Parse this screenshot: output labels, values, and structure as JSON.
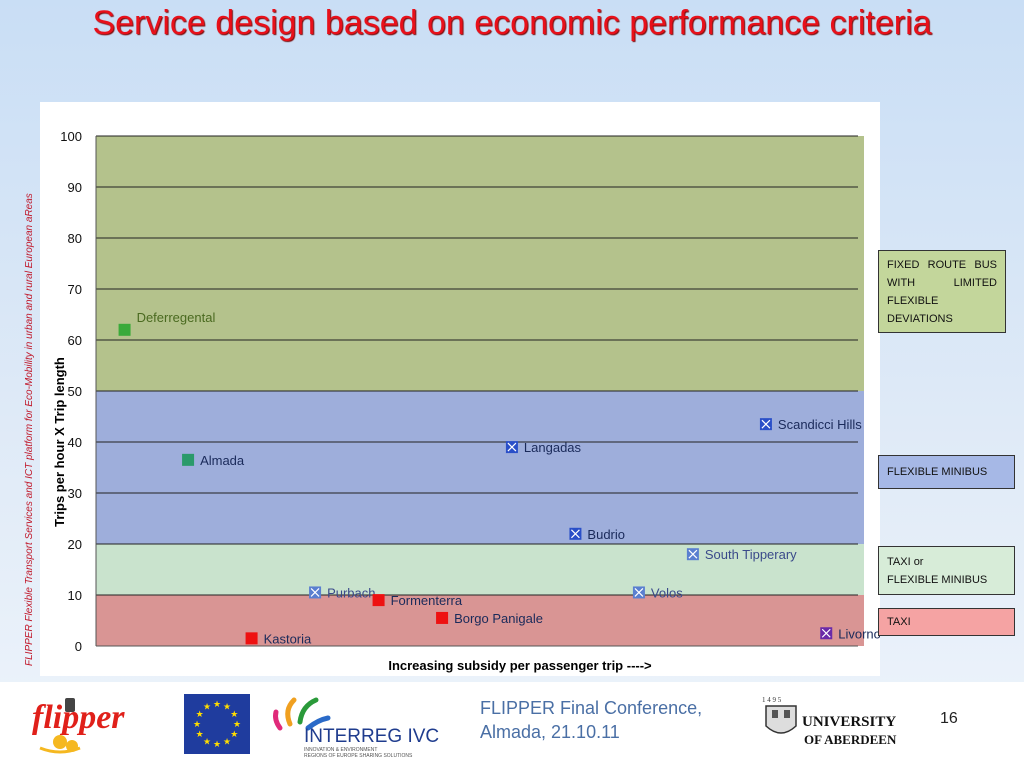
{
  "slide": {
    "title": "Service design based on economic performance criteria",
    "side_text": "FLIPPER Flexible Transport Services and ICT platform for Eco-Mobility in urban and rural European aReas"
  },
  "chart_data": {
    "type": "scatter",
    "xlabel": "Increasing subsidy per passenger trip ---->",
    "ylabel": "Trips per hour X Trip length",
    "ylim": [
      0,
      100
    ],
    "yticks": [
      0,
      10,
      20,
      30,
      40,
      50,
      60,
      70,
      80,
      90,
      100
    ],
    "xlim": [
      0,
      12
    ],
    "grid": true,
    "bands": [
      {
        "from": 50,
        "to": 100,
        "label": "FIXED ROUTE BUS WITH LIMITED FLEXIBLE DEVIATIONS",
        "color": "#b4c28c"
      },
      {
        "from": 20,
        "to": 50,
        "label": "FLEXIBLE MINIBUS",
        "color": "#9eaedb"
      },
      {
        "from": 10,
        "to": 20,
        "label": "TAXI or FLEXIBLE MINIBUS",
        "color": "#c9e3cd"
      },
      {
        "from": 0,
        "to": 10,
        "label": "TAXI",
        "color": "#d99594"
      }
    ],
    "points": [
      {
        "name": "Deferregental",
        "x": 0.45,
        "y": 62,
        "color": "#3aaa3a",
        "marker": "square"
      },
      {
        "name": "Almada",
        "x": 1.45,
        "y": 36.5,
        "color": "#2a9a6a",
        "marker": "square"
      },
      {
        "name": "Langadas",
        "x": 6.55,
        "y": 39,
        "color": "#2a4fc8",
        "marker": "cross-square"
      },
      {
        "name": "Scandicci Hills",
        "x": 10.55,
        "y": 43.5,
        "color": "#2a4fc8",
        "marker": "cross-square"
      },
      {
        "name": "Budrio",
        "x": 7.55,
        "y": 22,
        "color": "#2a4fc8",
        "marker": "cross-square"
      },
      {
        "name": "South Tipperary",
        "x": 9.4,
        "y": 18,
        "color": "#5a7fd0",
        "marker": "cross-square"
      },
      {
        "name": "Purbach",
        "x": 3.45,
        "y": 10.5,
        "color": "#5a7fd0",
        "marker": "cross-square"
      },
      {
        "name": "Formenterra",
        "x": 4.45,
        "y": 9,
        "color": "#ee1111",
        "marker": "square"
      },
      {
        "name": "Volos",
        "x": 8.55,
        "y": 10.5,
        "color": "#5a7fd0",
        "marker": "cross-square"
      },
      {
        "name": "Borgo Panigale",
        "x": 5.45,
        "y": 5.5,
        "color": "#ee1111",
        "marker": "square"
      },
      {
        "name": "Kastoria",
        "x": 2.45,
        "y": 1.5,
        "color": "#ee1111",
        "marker": "square"
      },
      {
        "name": "Livorno",
        "x": 11.5,
        "y": 2.5,
        "color": "#6a2aa8",
        "marker": "cross-square"
      }
    ]
  },
  "legend_boxes": {
    "fixed_route": "FIXED ROUTE BUS WITH LIMITED FLEXIBLE DEVIATIONS",
    "flexible_minibus": "FLEXIBLE MINIBUS",
    "taxi_or_flexible_line1": "TAXI or",
    "taxi_or_flexible_line2": "FLEXIBLE MINIBUS",
    "taxi": "TAXI"
  },
  "footer": {
    "logos": {
      "flipper": "flipper",
      "interreg": "INTERREG IVC",
      "interreg_sub1": "INNOVATION & ENVIRONMENT",
      "interreg_sub2": "REGIONS OF EUROPE SHARING SOLUTIONS",
      "aberdeen_year": "1 4 9 5",
      "aberdeen_line1": "UNIVERSITY",
      "aberdeen_line2": "OF ABERDEEN"
    },
    "conference_line1": "FLIPPER Final Conference,",
    "conference_line2": "Almada, 21.10.11",
    "page_number": "16"
  }
}
